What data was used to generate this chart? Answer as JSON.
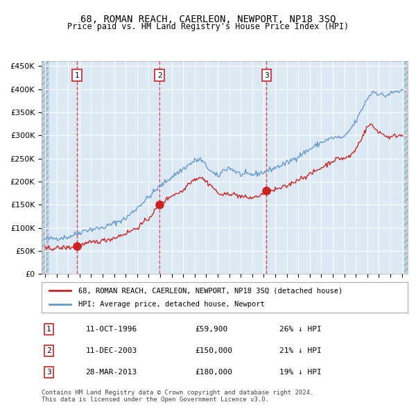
{
  "title": "68, ROMAN REACH, CAERLEON, NEWPORT, NP18 3SQ",
  "subtitle": "Price paid vs. HM Land Registry's House Price Index (HPI)",
  "ylabel_left": "",
  "background_color": "#dce9f5",
  "plot_bg_color": "#dce9f5",
  "hatch_color": "#c0d0e8",
  "grid_color": "#ffffff",
  "ylim": [
    0,
    460000
  ],
  "yticks": [
    0,
    50000,
    100000,
    150000,
    200000,
    250000,
    300000,
    350000,
    400000,
    450000
  ],
  "ytick_labels": [
    "£0",
    "£50K",
    "£100K",
    "£150K",
    "£200K",
    "£250K",
    "£300K",
    "£350K",
    "£400K",
    "£450K"
  ],
  "purchases": [
    {
      "date_num": 1996.78,
      "price": 59900,
      "label": "1"
    },
    {
      "date_num": 2003.94,
      "price": 150000,
      "label": "2"
    },
    {
      "date_num": 2013.23,
      "price": 180000,
      "label": "3"
    }
  ],
  "vline_dates": [
    1996.78,
    2003.94,
    2013.23
  ],
  "legend_entries": [
    "68, ROMAN REACH, CAERLEON, NEWPORT, NP18 3SQ (detached house)",
    "HPI: Average price, detached house, Newport"
  ],
  "table_rows": [
    [
      "1",
      "11-OCT-1996",
      "£59,900",
      "26% ↓ HPI"
    ],
    [
      "2",
      "11-DEC-2003",
      "£150,000",
      "21% ↓ HPI"
    ],
    [
      "3",
      "28-MAR-2013",
      "£180,000",
      "19% ↓ HPI"
    ]
  ],
  "footnote": "Contains HM Land Registry data © Crown copyright and database right 2024.\nThis data is licensed under the Open Government Licence v3.0.",
  "hpi_color": "#6699cc",
  "price_color": "#cc2222",
  "dot_color": "#cc2222",
  "vline_color": "#cc2222"
}
